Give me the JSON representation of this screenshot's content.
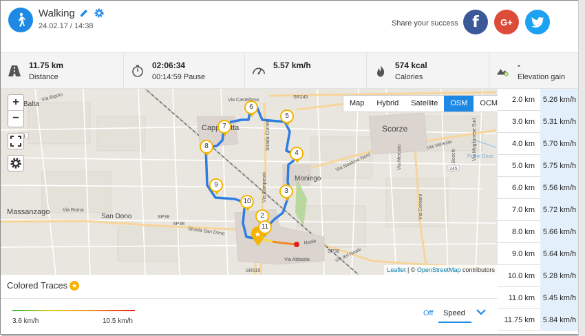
{
  "activity": {
    "title": "Walking",
    "date": "24.02.17 / 14:38",
    "share_label": "Share your success"
  },
  "social": {
    "facebook": "f",
    "googleplus": "G+"
  },
  "stats": [
    {
      "icon": "road-icon",
      "value": "11.75 km",
      "label": "Distance"
    },
    {
      "icon": "stopwatch-icon",
      "value": "02:06:34",
      "label": "00:14:59 Pause"
    },
    {
      "icon": "speedometer-icon",
      "value": "5.57 km/h",
      "label": ""
    },
    {
      "icon": "flame-icon",
      "value": "574 kcal",
      "label": "Calories"
    },
    {
      "icon": "elevation-icon",
      "value": "-",
      "label": "Elevation gain"
    }
  ],
  "map": {
    "zoom_in": "+",
    "zoom_out": "−",
    "layers": [
      "Map",
      "Hybrid",
      "Satellite",
      "OSM",
      "OCM"
    ],
    "active_layer": "OSM",
    "attribution": {
      "leaflet": "Leaflet",
      "sep": " | © ",
      "osm": "OpenStreetMap",
      "suffix": " contributors"
    },
    "place_labels": [
      "Capp",
      "etta",
      "Scorze",
      "Moniego",
      "Massanzago",
      "San Dono",
      "Balta"
    ],
    "road_labels": [
      "Via Bigolo",
      "SR245",
      "Via Castellana",
      "Strada Corner",
      "Via Noalese Nord",
      "Via Moglianese Sud",
      "Via Venezia",
      "Fiume Dese",
      "Via Roma",
      "SP38",
      "Strada San Dono",
      "Via Abbazia",
      "Via del Noale",
      "SR515",
      "SP36",
      "Via Boschi",
      "Via Cornaro",
      "Via Mercato",
      "SP38",
      "Noale",
      "Via Campestri"
    ],
    "markers": [
      "2",
      "3",
      "4",
      "5",
      "6",
      "7",
      "8",
      "9",
      "10",
      "11"
    ],
    "accent": "#1e88e5",
    "route_color": "#2f7de0"
  },
  "splits": [
    {
      "distance": "2.0 km",
      "speed": "5.26 km/h"
    },
    {
      "distance": "3.0 km",
      "speed": "5.31 km/h"
    },
    {
      "distance": "4.0 km",
      "speed": "5.70 km/h"
    },
    {
      "distance": "5.0 km",
      "speed": "5.75 km/h"
    },
    {
      "distance": "6.0 km",
      "speed": "5.56 km/h"
    },
    {
      "distance": "7.0 km",
      "speed": "5.72 km/h"
    },
    {
      "distance": "8.0 km",
      "speed": "5.66 km/h"
    },
    {
      "distance": "9.0 km",
      "speed": "5.64 km/h"
    },
    {
      "distance": "10.0 km",
      "speed": "5.28 km/h"
    },
    {
      "distance": "11.0 km",
      "speed": "5.45 km/h"
    },
    {
      "distance": "11.75 km",
      "speed": "5.84 km/h"
    }
  ],
  "traces": {
    "title": "Colored Traces",
    "min": "3.6 km/h",
    "max": "10.5 km/h",
    "off_label": "Off",
    "metric": "Speed"
  }
}
